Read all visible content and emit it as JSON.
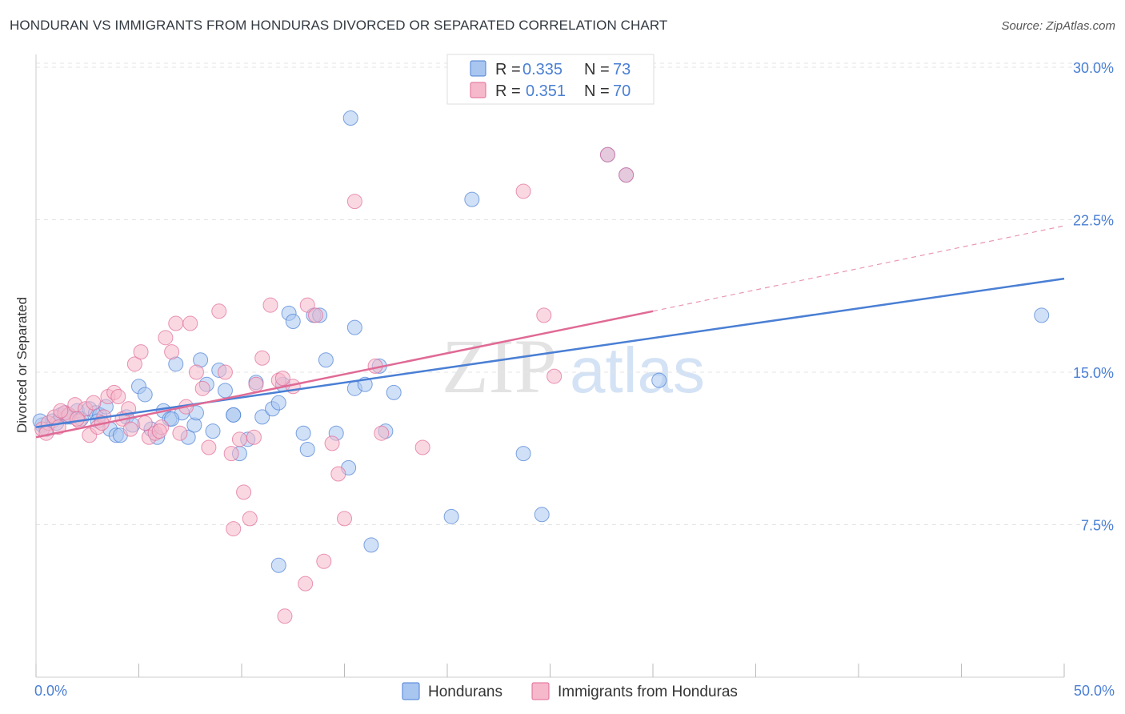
{
  "header": {
    "title": "HONDURAN VS IMMIGRANTS FROM HONDURAS DIVORCED OR SEPARATED CORRELATION CHART",
    "source": "Source: ZipAtlas.com"
  },
  "watermark": {
    "part1": "ZIP",
    "part2": "atlas"
  },
  "legend": {
    "entries": [
      {
        "r_label": "R = ",
        "r_value": "0.335",
        "n_label": "N = ",
        "n_value": "73"
      },
      {
        "r_label": "R = ",
        "r_value": "0.351",
        "n_label": "N = ",
        "n_value": "70"
      }
    ]
  },
  "bottom_legend": [
    "Hondurans",
    "Immigrants from Honduras"
  ],
  "chart_data": {
    "type": "scatter",
    "title": "HONDURAN VS IMMIGRANTS FROM HONDURAS DIVORCED OR SEPARATED CORRELATION CHART",
    "xlabel": "",
    "ylabel": "Divorced or Separated",
    "xlim": [
      0,
      50
    ],
    "ylim": [
      0,
      31
    ],
    "x_tick_labels": [
      "0.0%",
      "50.0%"
    ],
    "y_ticks": [
      7.5,
      15.0,
      22.5,
      30.0
    ],
    "y_tick_labels": [
      "7.5%",
      "15.0%",
      "22.5%",
      "30.0%"
    ],
    "grid": true,
    "colors": {
      "series1": "#4a7fd4",
      "series1_fill": "#a9c6f0",
      "series2": "#e06a95",
      "series2_fill": "#f6b8cb",
      "tick_text": "#4a7fd4"
    },
    "series": [
      {
        "name": "Hondurans",
        "r": 0.335,
        "n": 73,
        "trend": {
          "x": [
            0,
            50
          ],
          "y": [
            12.3,
            19.6
          ]
        },
        "points": [
          [
            0.3,
            12.4
          ],
          [
            0.5,
            12.2
          ],
          [
            0.8,
            12.6
          ],
          [
            1.0,
            12.5
          ],
          [
            1.2,
            12.9
          ],
          [
            1.4,
            13.0
          ],
          [
            1.7,
            12.8
          ],
          [
            2.0,
            13.1
          ],
          [
            2.2,
            12.7
          ],
          [
            2.6,
            13.2
          ],
          [
            2.9,
            13.0
          ],
          [
            3.1,
            12.9
          ],
          [
            3.4,
            13.3
          ],
          [
            3.6,
            12.2
          ],
          [
            3.9,
            11.9
          ],
          [
            4.1,
            11.9
          ],
          [
            4.4,
            12.8
          ],
          [
            4.7,
            12.4
          ],
          [
            5.0,
            14.3
          ],
          [
            5.3,
            13.9
          ],
          [
            5.6,
            12.2
          ],
          [
            5.9,
            11.8
          ],
          [
            6.2,
            13.1
          ],
          [
            6.5,
            12.7
          ],
          [
            6.8,
            15.4
          ],
          [
            7.1,
            13.0
          ],
          [
            7.4,
            11.8
          ],
          [
            7.7,
            12.4
          ],
          [
            7.8,
            13.0
          ],
          [
            8.0,
            15.6
          ],
          [
            8.3,
            14.4
          ],
          [
            8.6,
            12.1
          ],
          [
            8.9,
            15.1
          ],
          [
            9.2,
            14.1
          ],
          [
            9.6,
            12.9
          ],
          [
            9.9,
            11.0
          ],
          [
            10.3,
            11.7
          ],
          [
            10.7,
            14.5
          ],
          [
            11.0,
            12.8
          ],
          [
            11.5,
            13.2
          ],
          [
            11.8,
            13.5
          ],
          [
            12.0,
            14.4
          ],
          [
            12.3,
            17.9
          ],
          [
            12.5,
            17.5
          ],
          [
            13.0,
            12.0
          ],
          [
            13.2,
            11.2
          ],
          [
            13.5,
            17.8
          ],
          [
            13.8,
            17.8
          ],
          [
            14.1,
            15.6
          ],
          [
            14.6,
            12.0
          ],
          [
            15.2,
            10.3
          ],
          [
            15.5,
            14.2
          ],
          [
            15.5,
            17.2
          ],
          [
            16.0,
            14.4
          ],
          [
            16.3,
            6.5
          ],
          [
            16.7,
            15.3
          ],
          [
            17.0,
            12.1
          ],
          [
            17.4,
            14.0
          ],
          [
            20.2,
            7.9
          ],
          [
            21.2,
            23.5
          ],
          [
            23.7,
            11.0
          ],
          [
            24.6,
            8.0
          ],
          [
            27.8,
            25.7
          ],
          [
            28.7,
            24.7
          ],
          [
            30.3,
            14.6
          ],
          [
            48.9,
            17.8
          ],
          [
            15.3,
            27.5
          ],
          [
            11.8,
            5.5
          ],
          [
            9.6,
            12.9
          ],
          [
            6.6,
            12.7
          ],
          [
            3.0,
            12.6
          ],
          [
            1.5,
            12.8
          ],
          [
            0.2,
            12.6
          ]
        ]
      },
      {
        "name": "Immigrants from Honduras",
        "r": 0.351,
        "n": 70,
        "trend": {
          "x": [
            0,
            30
          ],
          "y": [
            11.8,
            18.0
          ]
        },
        "trend_dashed": {
          "x": [
            30,
            50
          ],
          "y": [
            18.0,
            22.2
          ]
        },
        "points": [
          [
            0.3,
            12.2
          ],
          [
            0.6,
            12.5
          ],
          [
            0.9,
            12.8
          ],
          [
            1.1,
            12.3
          ],
          [
            1.4,
            13.0
          ],
          [
            1.6,
            12.9
          ],
          [
            1.9,
            13.4
          ],
          [
            2.1,
            12.6
          ],
          [
            2.4,
            13.2
          ],
          [
            2.6,
            11.9
          ],
          [
            2.8,
            13.5
          ],
          [
            3.0,
            12.3
          ],
          [
            3.3,
            12.8
          ],
          [
            3.5,
            13.8
          ],
          [
            3.8,
            14.0
          ],
          [
            4.0,
            13.8
          ],
          [
            4.2,
            12.7
          ],
          [
            4.5,
            13.2
          ],
          [
            4.8,
            15.4
          ],
          [
            5.1,
            16.0
          ],
          [
            5.3,
            12.5
          ],
          [
            5.5,
            11.8
          ],
          [
            5.8,
            12.0
          ],
          [
            6.1,
            12.3
          ],
          [
            6.3,
            16.7
          ],
          [
            6.6,
            16.0
          ],
          [
            6.8,
            17.4
          ],
          [
            7.0,
            12.0
          ],
          [
            7.3,
            13.3
          ],
          [
            7.5,
            17.4
          ],
          [
            7.8,
            15.0
          ],
          [
            8.1,
            14.2
          ],
          [
            8.4,
            11.3
          ],
          [
            8.9,
            18.0
          ],
          [
            9.2,
            15.0
          ],
          [
            9.5,
            11.0
          ],
          [
            9.9,
            11.7
          ],
          [
            10.1,
            9.1
          ],
          [
            10.4,
            7.8
          ],
          [
            10.7,
            14.4
          ],
          [
            11.0,
            15.7
          ],
          [
            11.4,
            18.3
          ],
          [
            11.8,
            14.6
          ],
          [
            12.1,
            3.0
          ],
          [
            13.1,
            4.6
          ],
          [
            12.5,
            14.3
          ],
          [
            13.2,
            18.3
          ],
          [
            13.6,
            17.8
          ],
          [
            14.0,
            5.7
          ],
          [
            14.4,
            11.5
          ],
          [
            14.7,
            10.0
          ],
          [
            15.0,
            7.8
          ],
          [
            15.5,
            23.4
          ],
          [
            16.5,
            15.3
          ],
          [
            16.8,
            12.0
          ],
          [
            18.8,
            11.3
          ],
          [
            23.7,
            23.9
          ],
          [
            24.7,
            17.8
          ],
          [
            25.2,
            14.8
          ],
          [
            27.8,
            25.7
          ],
          [
            28.7,
            24.7
          ],
          [
            9.6,
            7.3
          ],
          [
            6.0,
            12.1
          ],
          [
            4.6,
            12.2
          ],
          [
            3.2,
            12.5
          ],
          [
            2.0,
            12.7
          ],
          [
            1.2,
            13.1
          ],
          [
            0.5,
            12.0
          ],
          [
            10.6,
            11.8
          ],
          [
            12.0,
            14.7
          ]
        ]
      }
    ]
  }
}
